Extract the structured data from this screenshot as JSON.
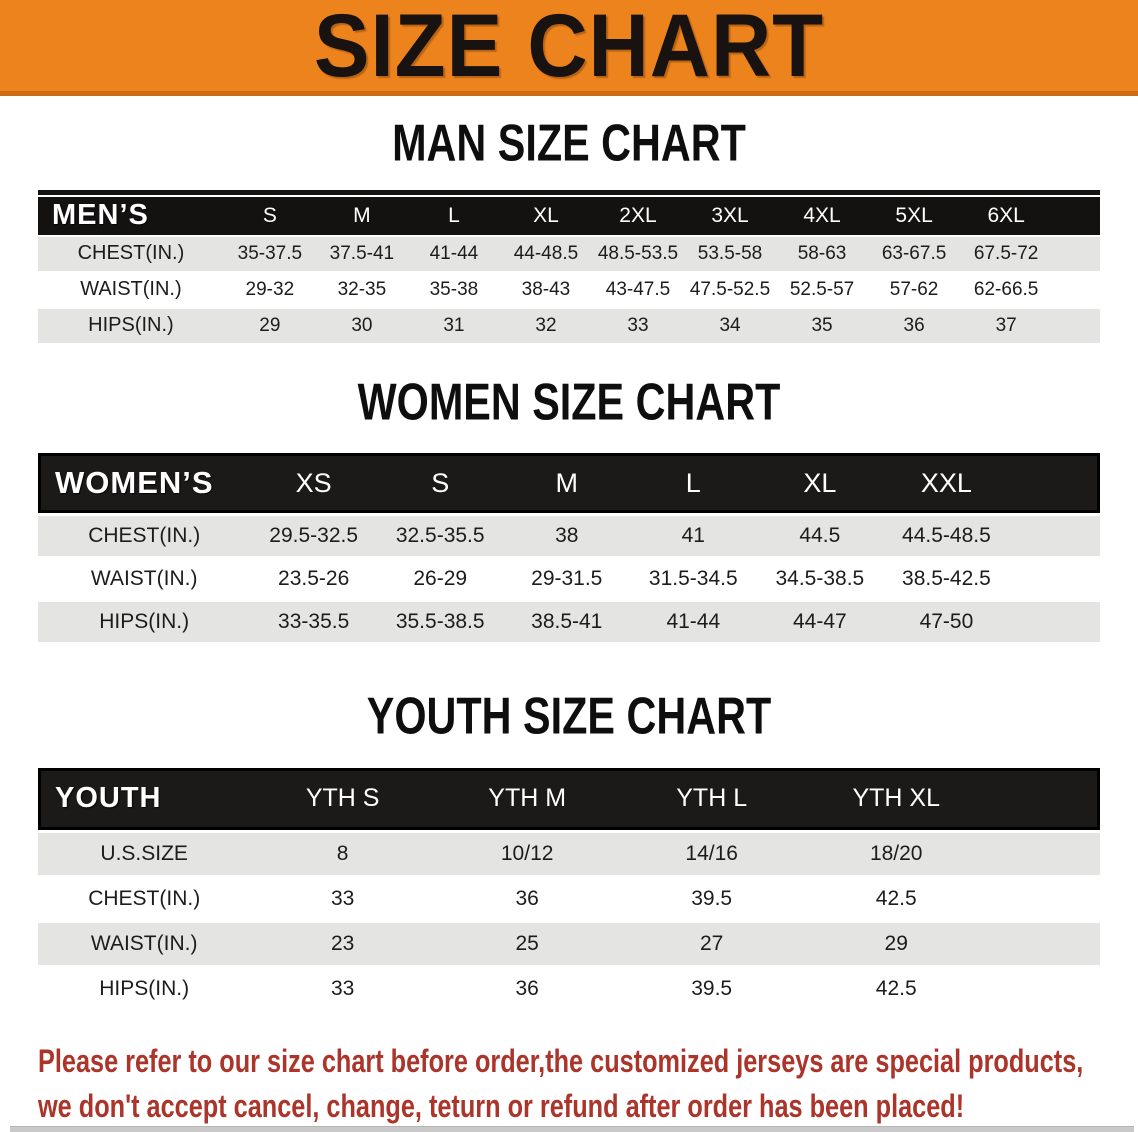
{
  "banner": {
    "title": "SIZE CHART",
    "bg_color": "#ec831d",
    "border_color": "#cd6a14"
  },
  "sections": [
    {
      "heading": "MAN SIZE CHART",
      "table": {
        "label": "MEN’S",
        "columns": [
          "S",
          "M",
          "L",
          "XL",
          "2XL",
          "3XL",
          "4XL",
          "5XL",
          "6XL"
        ],
        "rows": [
          {
            "label": "CHEST(IN.)",
            "values": [
              "35-37.5",
              "37.5-41",
              "41-44",
              "44-48.5",
              "48.5-53.5",
              "53.5-58",
              "58-63",
              "63-67.5",
              "67.5-72"
            ]
          },
          {
            "label": "WAIST(IN.)",
            "values": [
              "29-32",
              "32-35",
              "35-38",
              "38-43",
              "43-47.5",
              "47.5-52.5",
              "52.5-57",
              "57-62",
              "62-66.5"
            ]
          },
          {
            "label": "HIPS(IN.)",
            "values": [
              "29",
              "30",
              "31",
              "32",
              "33",
              "34",
              "35",
              "36",
              "37"
            ]
          }
        ]
      }
    },
    {
      "heading": "WOMEN SIZE CHART",
      "table": {
        "label": "WOMEN’S",
        "columns": [
          "XS",
          "S",
          "M",
          "L",
          "XL",
          "XXL"
        ],
        "rows": [
          {
            "label": "CHEST(IN.)",
            "values": [
              "29.5-32.5",
              "32.5-35.5",
              "38",
              "41",
              "44.5",
              "44.5-48.5"
            ]
          },
          {
            "label": "WAIST(IN.)",
            "values": [
              "23.5-26",
              "26-29",
              "29-31.5",
              "31.5-34.5",
              "34.5-38.5",
              "38.5-42.5"
            ]
          },
          {
            "label": "HIPS(IN.)",
            "values": [
              "33-35.5",
              "35.5-38.5",
              "38.5-41",
              "41-44",
              "44-47",
              "47-50"
            ]
          }
        ]
      }
    },
    {
      "heading": "YOUTH SIZE CHART",
      "table": {
        "label": "YOUTH",
        "columns": [
          "YTH S",
          "YTH M",
          "YTH L",
          "YTH XL"
        ],
        "rows": [
          {
            "label": "U.S.SIZE",
            "values": [
              "8",
              "10/12",
              "14/16",
              "18/20"
            ]
          },
          {
            "label": "CHEST(IN.)",
            "values": [
              "33",
              "36",
              "39.5",
              "42.5"
            ]
          },
          {
            "label": "WAIST(IN.)",
            "values": [
              "23",
              "25",
              "27",
              "29"
            ]
          },
          {
            "label": "HIPS(IN.)",
            "values": [
              "33",
              "36",
              "39.5",
              "42.5"
            ]
          }
        ]
      }
    }
  ],
  "disclaimer": {
    "line1": "Please refer to our size chart before order,the customized jerseys are special products,",
    "line2": "we don't accept cancel, change, teturn or refund after order has been placed!",
    "color": "#ac352b"
  }
}
